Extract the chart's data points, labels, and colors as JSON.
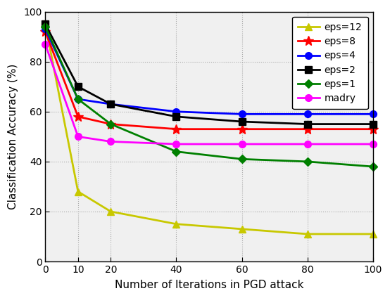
{
  "x": [
    0,
    10,
    20,
    40,
    60,
    80,
    100
  ],
  "series": {
    "eps=12": {
      "y": [
        95,
        28,
        20,
        15,
        13,
        11,
        11
      ],
      "color": "#c8c800",
      "marker": "^",
      "linestyle": "-",
      "linewidth": 2.0,
      "markersize": 7
    },
    "eps=8": {
      "y": [
        92,
        58,
        55,
        53,
        53,
        53,
        53
      ],
      "color": "#ff0000",
      "marker": "*",
      "linestyle": "-",
      "linewidth": 2.0,
      "markersize": 10
    },
    "eps=4": {
      "y": [
        93,
        65,
        63,
        60,
        59,
        59,
        59
      ],
      "color": "#0000ff",
      "marker": "o",
      "linestyle": "-",
      "linewidth": 2.0,
      "markersize": 7
    },
    "eps=2": {
      "y": [
        95,
        70,
        63,
        58,
        56,
        55,
        55
      ],
      "color": "#000000",
      "marker": "s",
      "linestyle": "-",
      "linewidth": 2.0,
      "markersize": 7
    },
    "eps=1": {
      "y": [
        94,
        65,
        55,
        44,
        41,
        40,
        38
      ],
      "color": "#008000",
      "marker": "D",
      "linestyle": "-",
      "linewidth": 2.0,
      "markersize": 6
    },
    "madry": {
      "y": [
        87,
        50,
        48,
        47,
        47,
        47,
        47
      ],
      "color": "#ff00ff",
      "marker": "o",
      "linestyle": "-",
      "linewidth": 2.0,
      "markersize": 7
    }
  },
  "xlabel": "Number of Iterations in PGD attack",
  "ylabel": "Classification Accuracy (%)",
  "ylim": [
    0,
    100
  ],
  "xlim": [
    0,
    100
  ],
  "xticks": [
    0,
    10,
    20,
    40,
    60,
    80,
    100
  ],
  "yticks": [
    0,
    20,
    40,
    60,
    80,
    100
  ],
  "legend_order": [
    "eps=12",
    "eps=8",
    "eps=4",
    "eps=2",
    "eps=1",
    "madry"
  ],
  "plot_bg_color": "#f0f0f0",
  "fig_bg_color": "#ffffff"
}
